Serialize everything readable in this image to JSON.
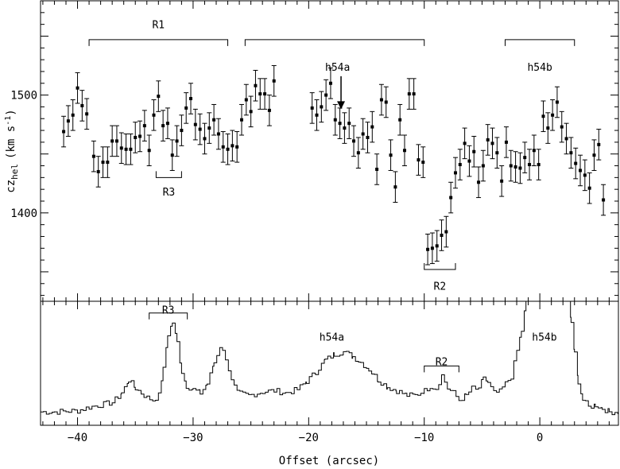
{
  "chart_data": [
    {
      "type": "scatter",
      "ylabel_main": "cz",
      "ylabel_sub": "hel",
      "ylabel_unit": "(km s",
      "ylabel_sup": "-1",
      "ylabel_close": ")",
      "xlim": [
        -43.2,
        6.8
      ],
      "ylim": [
        1325,
        1580
      ],
      "yticks": [
        {
          "v": 1400,
          "label": "1400"
        },
        {
          "v": 1500,
          "label": "1500"
        }
      ],
      "error_bar": 13,
      "points": [
        [
          -41.2,
          1469
        ],
        [
          -40.8,
          1478
        ],
        [
          -40.4,
          1483
        ],
        [
          -40.0,
          1506
        ],
        [
          -39.6,
          1491
        ],
        [
          -39.2,
          1484
        ],
        [
          -38.6,
          1448
        ],
        [
          -38.2,
          1435
        ],
        [
          -37.8,
          1443
        ],
        [
          -37.4,
          1443
        ],
        [
          -37.0,
          1461
        ],
        [
          -36.6,
          1461
        ],
        [
          -36.2,
          1455
        ],
        [
          -35.8,
          1454
        ],
        [
          -35.4,
          1454
        ],
        [
          -35.0,
          1464
        ],
        [
          -34.6,
          1465
        ],
        [
          -34.2,
          1474
        ],
        [
          -33.8,
          1453
        ],
        [
          -33.4,
          1483
        ],
        [
          -33.0,
          1499
        ],
        [
          -32.6,
          1474
        ],
        [
          -32.2,
          1476
        ],
        [
          -31.8,
          1449
        ],
        [
          -31.4,
          1461
        ],
        [
          -31.0,
          1470
        ],
        [
          -30.6,
          1489
        ],
        [
          -30.2,
          1497
        ],
        [
          -29.8,
          1475
        ],
        [
          -29.4,
          1471
        ],
        [
          -29.0,
          1463
        ],
        [
          -28.6,
          1472
        ],
        [
          -28.2,
          1479
        ],
        [
          -27.8,
          1467
        ],
        [
          -27.4,
          1456
        ],
        [
          -27.0,
          1454
        ],
        [
          -26.6,
          1457
        ],
        [
          -26.2,
          1456
        ],
        [
          -25.8,
          1479
        ],
        [
          -25.4,
          1496
        ],
        [
          -25.0,
          1486
        ],
        [
          -24.6,
          1508
        ],
        [
          -24.2,
          1501
        ],
        [
          -23.8,
          1501
        ],
        [
          -23.4,
          1487
        ],
        [
          -23.0,
          1512
        ],
        [
          -19.7,
          1489
        ],
        [
          -19.3,
          1483
        ],
        [
          -18.9,
          1490
        ],
        [
          -18.5,
          1500
        ],
        [
          -18.1,
          1510
        ],
        [
          -17.7,
          1479
        ],
        [
          -17.3,
          1476
        ],
        [
          -16.9,
          1472
        ],
        [
          -16.5,
          1476
        ],
        [
          -16.1,
          1461
        ],
        [
          -15.7,
          1451
        ],
        [
          -15.3,
          1467
        ],
        [
          -14.9,
          1464
        ],
        [
          -14.5,
          1473
        ],
        [
          -14.1,
          1437
        ],
        [
          -13.7,
          1496
        ],
        [
          -13.3,
          1494
        ],
        [
          -12.9,
          1449
        ],
        [
          -12.5,
          1422
        ],
        [
          -12.1,
          1479
        ],
        [
          -11.7,
          1453
        ],
        [
          -11.3,
          1501
        ],
        [
          -10.9,
          1501
        ],
        [
          -10.5,
          1445
        ],
        [
          -10.1,
          1443
        ],
        [
          -9.7,
          1369
        ],
        [
          -9.3,
          1370
        ],
        [
          -8.9,
          1372
        ],
        [
          -8.5,
          1381
        ],
        [
          -8.1,
          1384
        ],
        [
          -7.7,
          1413
        ],
        [
          -7.3,
          1434
        ],
        [
          -6.9,
          1441
        ],
        [
          -6.5,
          1459
        ],
        [
          -6.1,
          1444
        ],
        [
          -5.7,
          1452
        ],
        [
          -5.3,
          1426
        ],
        [
          -4.9,
          1440
        ],
        [
          -4.5,
          1462
        ],
        [
          -4.1,
          1459
        ],
        [
          -3.7,
          1451
        ],
        [
          -3.3,
          1427
        ],
        [
          -2.9,
          1460
        ],
        [
          -2.5,
          1440
        ],
        [
          -2.1,
          1439
        ],
        [
          -1.7,
          1438
        ],
        [
          -1.3,
          1447
        ],
        [
          -0.9,
          1441
        ],
        [
          -0.5,
          1453
        ],
        [
          -0.1,
          1441
        ],
        [
          0.3,
          1482
        ],
        [
          0.7,
          1472
        ],
        [
          1.1,
          1483
        ],
        [
          1.5,
          1494
        ],
        [
          1.9,
          1473
        ],
        [
          2.3,
          1463
        ],
        [
          2.7,
          1451
        ],
        [
          3.1,
          1442
        ],
        [
          3.5,
          1436
        ],
        [
          3.9,
          1432
        ],
        [
          4.3,
          1421
        ],
        [
          4.7,
          1449
        ],
        [
          5.1,
          1458
        ],
        [
          5.5,
          1411
        ]
      ],
      "annotations": [
        {
          "type": "bracket",
          "label": "R1",
          "x1": -39.0,
          "x2": -27.0,
          "y": 1547,
          "dir": "down",
          "label_y": 1560
        },
        {
          "type": "bracket",
          "label": "",
          "x1": -25.5,
          "x2": -10.0,
          "y": 1547,
          "dir": "down",
          "label_y": 1560
        },
        {
          "type": "bracket",
          "label": "h54b",
          "x1": -3.0,
          "x2": 3.0,
          "y": 1547,
          "dir": "down",
          "label_y": 1524
        },
        {
          "type": "bracket",
          "label": "R3",
          "x1": -33.2,
          "x2": -31.0,
          "y": 1430,
          "dir": "up",
          "label_y": 1418
        },
        {
          "type": "bracket",
          "label": "R2",
          "x1": -10.0,
          "x2": -7.3,
          "y": 1352,
          "dir": "up",
          "label_y": 1338
        },
        {
          "type": "text",
          "label": "h54a",
          "x": -17.5,
          "y": 1524
        },
        {
          "type": "arrow",
          "x": -17.2,
          "y1": 1516,
          "y2": 1488
        }
      ]
    },
    {
      "type": "line",
      "xlabel": "Offset (arcsec)",
      "xlim": [
        -43.2,
        6.8
      ],
      "xticks": [
        {
          "v": -40,
          "label": "−40"
        },
        {
          "v": -30,
          "label": "−30"
        },
        {
          "v": -20,
          "label": "−20"
        },
        {
          "v": -10,
          "label": "−10"
        },
        {
          "v": 0,
          "label": "0"
        }
      ],
      "ylim": [
        0,
        1
      ],
      "profile": [
        [
          -43.2,
          0.06
        ],
        [
          -42.0,
          0.06
        ],
        [
          -40.0,
          0.07
        ],
        [
          -39.0,
          0.1
        ],
        [
          -38.0,
          0.12
        ],
        [
          -37.0,
          0.14
        ],
        [
          -36.2,
          0.22
        ],
        [
          -35.6,
          0.33
        ],
        [
          -35.0,
          0.26
        ],
        [
          -34.0,
          0.18
        ],
        [
          -33.5,
          0.16
        ],
        [
          -33.0,
          0.2
        ],
        [
          -32.6,
          0.42
        ],
        [
          -32.2,
          0.72
        ],
        [
          -31.8,
          0.82
        ],
        [
          -31.4,
          0.65
        ],
        [
          -31.0,
          0.4
        ],
        [
          -30.6,
          0.28
        ],
        [
          -30.0,
          0.25
        ],
        [
          -29.4,
          0.22
        ],
        [
          -28.8,
          0.3
        ],
        [
          -28.2,
          0.48
        ],
        [
          -27.7,
          0.62
        ],
        [
          -27.2,
          0.52
        ],
        [
          -26.7,
          0.32
        ],
        [
          -26.2,
          0.22
        ],
        [
          -25.2,
          0.2
        ],
        [
          -24.0,
          0.23
        ],
        [
          -23.0,
          0.24
        ],
        [
          -22.0,
          0.22
        ],
        [
          -21.0,
          0.25
        ],
        [
          -20.2,
          0.32
        ],
        [
          -19.4,
          0.4
        ],
        [
          -18.6,
          0.5
        ],
        [
          -17.8,
          0.55
        ],
        [
          -17.0,
          0.57
        ],
        [
          -16.2,
          0.53
        ],
        [
          -15.5,
          0.48
        ],
        [
          -14.8,
          0.42
        ],
        [
          -14.0,
          0.33
        ],
        [
          -13.2,
          0.27
        ],
        [
          -12.4,
          0.24
        ],
        [
          -11.5,
          0.2
        ],
        [
          -10.8,
          0.2
        ],
        [
          -10.0,
          0.24
        ],
        [
          -9.5,
          0.28
        ],
        [
          -9.0,
          0.26
        ],
        [
          -8.5,
          0.37
        ],
        [
          -8.0,
          0.26
        ],
        [
          -7.5,
          0.22
        ],
        [
          -7.0,
          0.16
        ],
        [
          -6.4,
          0.2
        ],
        [
          -5.8,
          0.27
        ],
        [
          -5.3,
          0.24
        ],
        [
          -4.9,
          0.36
        ],
        [
          -4.5,
          0.3
        ],
        [
          -4.0,
          0.22
        ],
        [
          -3.5,
          0.23
        ],
        [
          -3.0,
          0.3
        ],
        [
          -2.5,
          0.36
        ],
        [
          -2.0,
          0.58
        ],
        [
          -1.6,
          0.75
        ],
        [
          -1.2,
          1.0
        ],
        [
          -0.8,
          1.0
        ],
        [
          2.4,
          1.0
        ],
        [
          2.7,
          0.82
        ],
        [
          3.0,
          0.55
        ],
        [
          3.3,
          0.32
        ],
        [
          3.7,
          0.16
        ],
        [
          4.2,
          0.1
        ],
        [
          4.8,
          0.12
        ],
        [
          5.4,
          0.09
        ],
        [
          6.0,
          0.06
        ],
        [
          6.8,
          0.06
        ]
      ],
      "annotations": [
        {
          "type": "bracket",
          "label": "R3",
          "x1": -33.8,
          "x2": -30.5,
          "y": 0.9,
          "dir": "down",
          "label_y": 0.93
        },
        {
          "type": "bracket",
          "label": "R2",
          "x1": -10.0,
          "x2": -7.0,
          "y": 0.45,
          "dir": "down",
          "label_y": 0.49
        },
        {
          "type": "text",
          "label": "h54a",
          "x": -18.0,
          "y": 0.7
        },
        {
          "type": "text",
          "label": "h54b",
          "x": 0.4,
          "y": 0.7
        }
      ]
    }
  ]
}
